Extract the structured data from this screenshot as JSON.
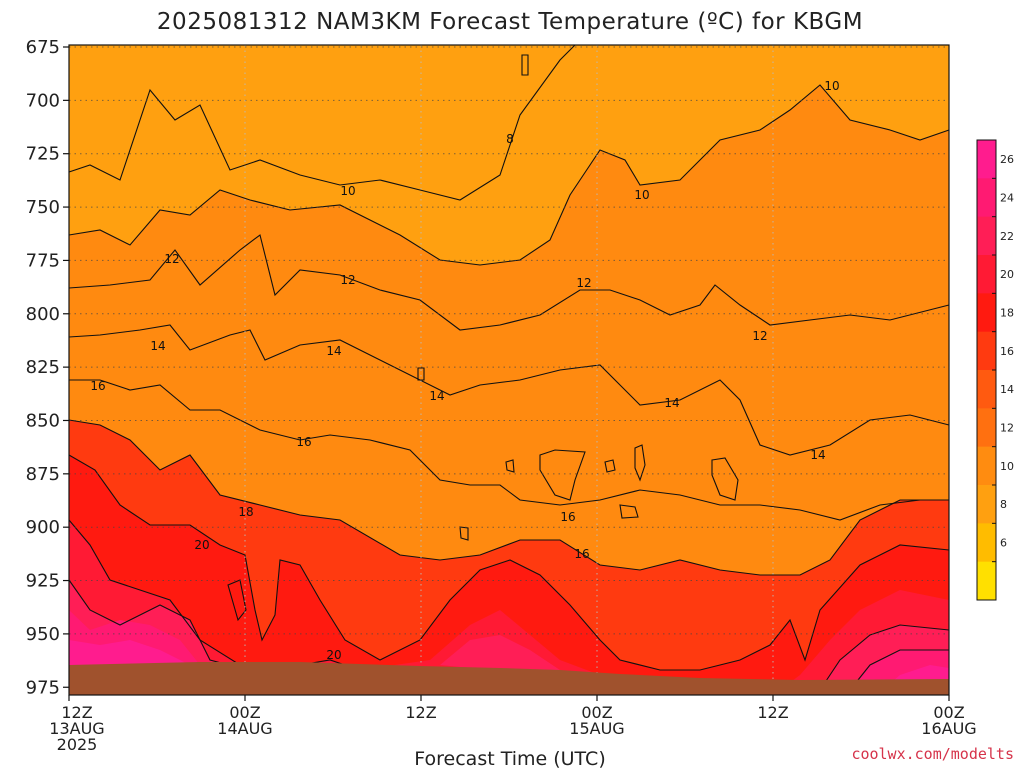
{
  "chart_data": {
    "type": "heatmap",
    "title": "2025081312 NAM3KM Forecast Temperature (ºC) for KBGM",
    "xlabel": "Forecast Time (UTC)",
    "ylabel": "",
    "y_scale": "pressure (inverted)",
    "ylim": [
      975,
      675
    ],
    "y_ticks": [
      "675",
      "700",
      "725",
      "750",
      "775",
      "800",
      "825",
      "850",
      "875",
      "900",
      "925",
      "950",
      "975"
    ],
    "x_ticks": [
      {
        "lines": [
          "12Z",
          "13AUG",
          "2025"
        ]
      },
      {
        "lines": [
          "00Z",
          "14AUG"
        ]
      },
      {
        "lines": [
          "12Z"
        ]
      },
      {
        "lines": [
          "00Z",
          "15AUG"
        ]
      },
      {
        "lines": [
          "12Z"
        ]
      },
      {
        "lines": [
          "00Z",
          "16AUG"
        ]
      }
    ],
    "grid": true,
    "colorbar": {
      "labels": [
        "26",
        "24",
        "22",
        "20",
        "18",
        "16",
        "14",
        "12",
        "10",
        "8",
        "6"
      ],
      "colors": [
        "#ff1c8e",
        "#ff1a72",
        "#ff1e56",
        "#ff1a34",
        "#ff1a10",
        "#ff3a10",
        "#ff5a10",
        "#ff7010",
        "#ff8c10",
        "#ffa010",
        "#ffbc00",
        "#ffe000"
      ]
    },
    "contour_levels": [
      8,
      10,
      12,
      14,
      16,
      18,
      20
    ],
    "contour_labels": [
      "8",
      "10",
      "10",
      "10",
      "12",
      "12",
      "12",
      "12",
      "14",
      "14",
      "14",
      "14",
      "14",
      "16",
      "16",
      "16",
      "16",
      "18",
      "20",
      "20"
    ],
    "surface_color": "#a0522d"
  },
  "credit": "coolwx.com/modelts"
}
